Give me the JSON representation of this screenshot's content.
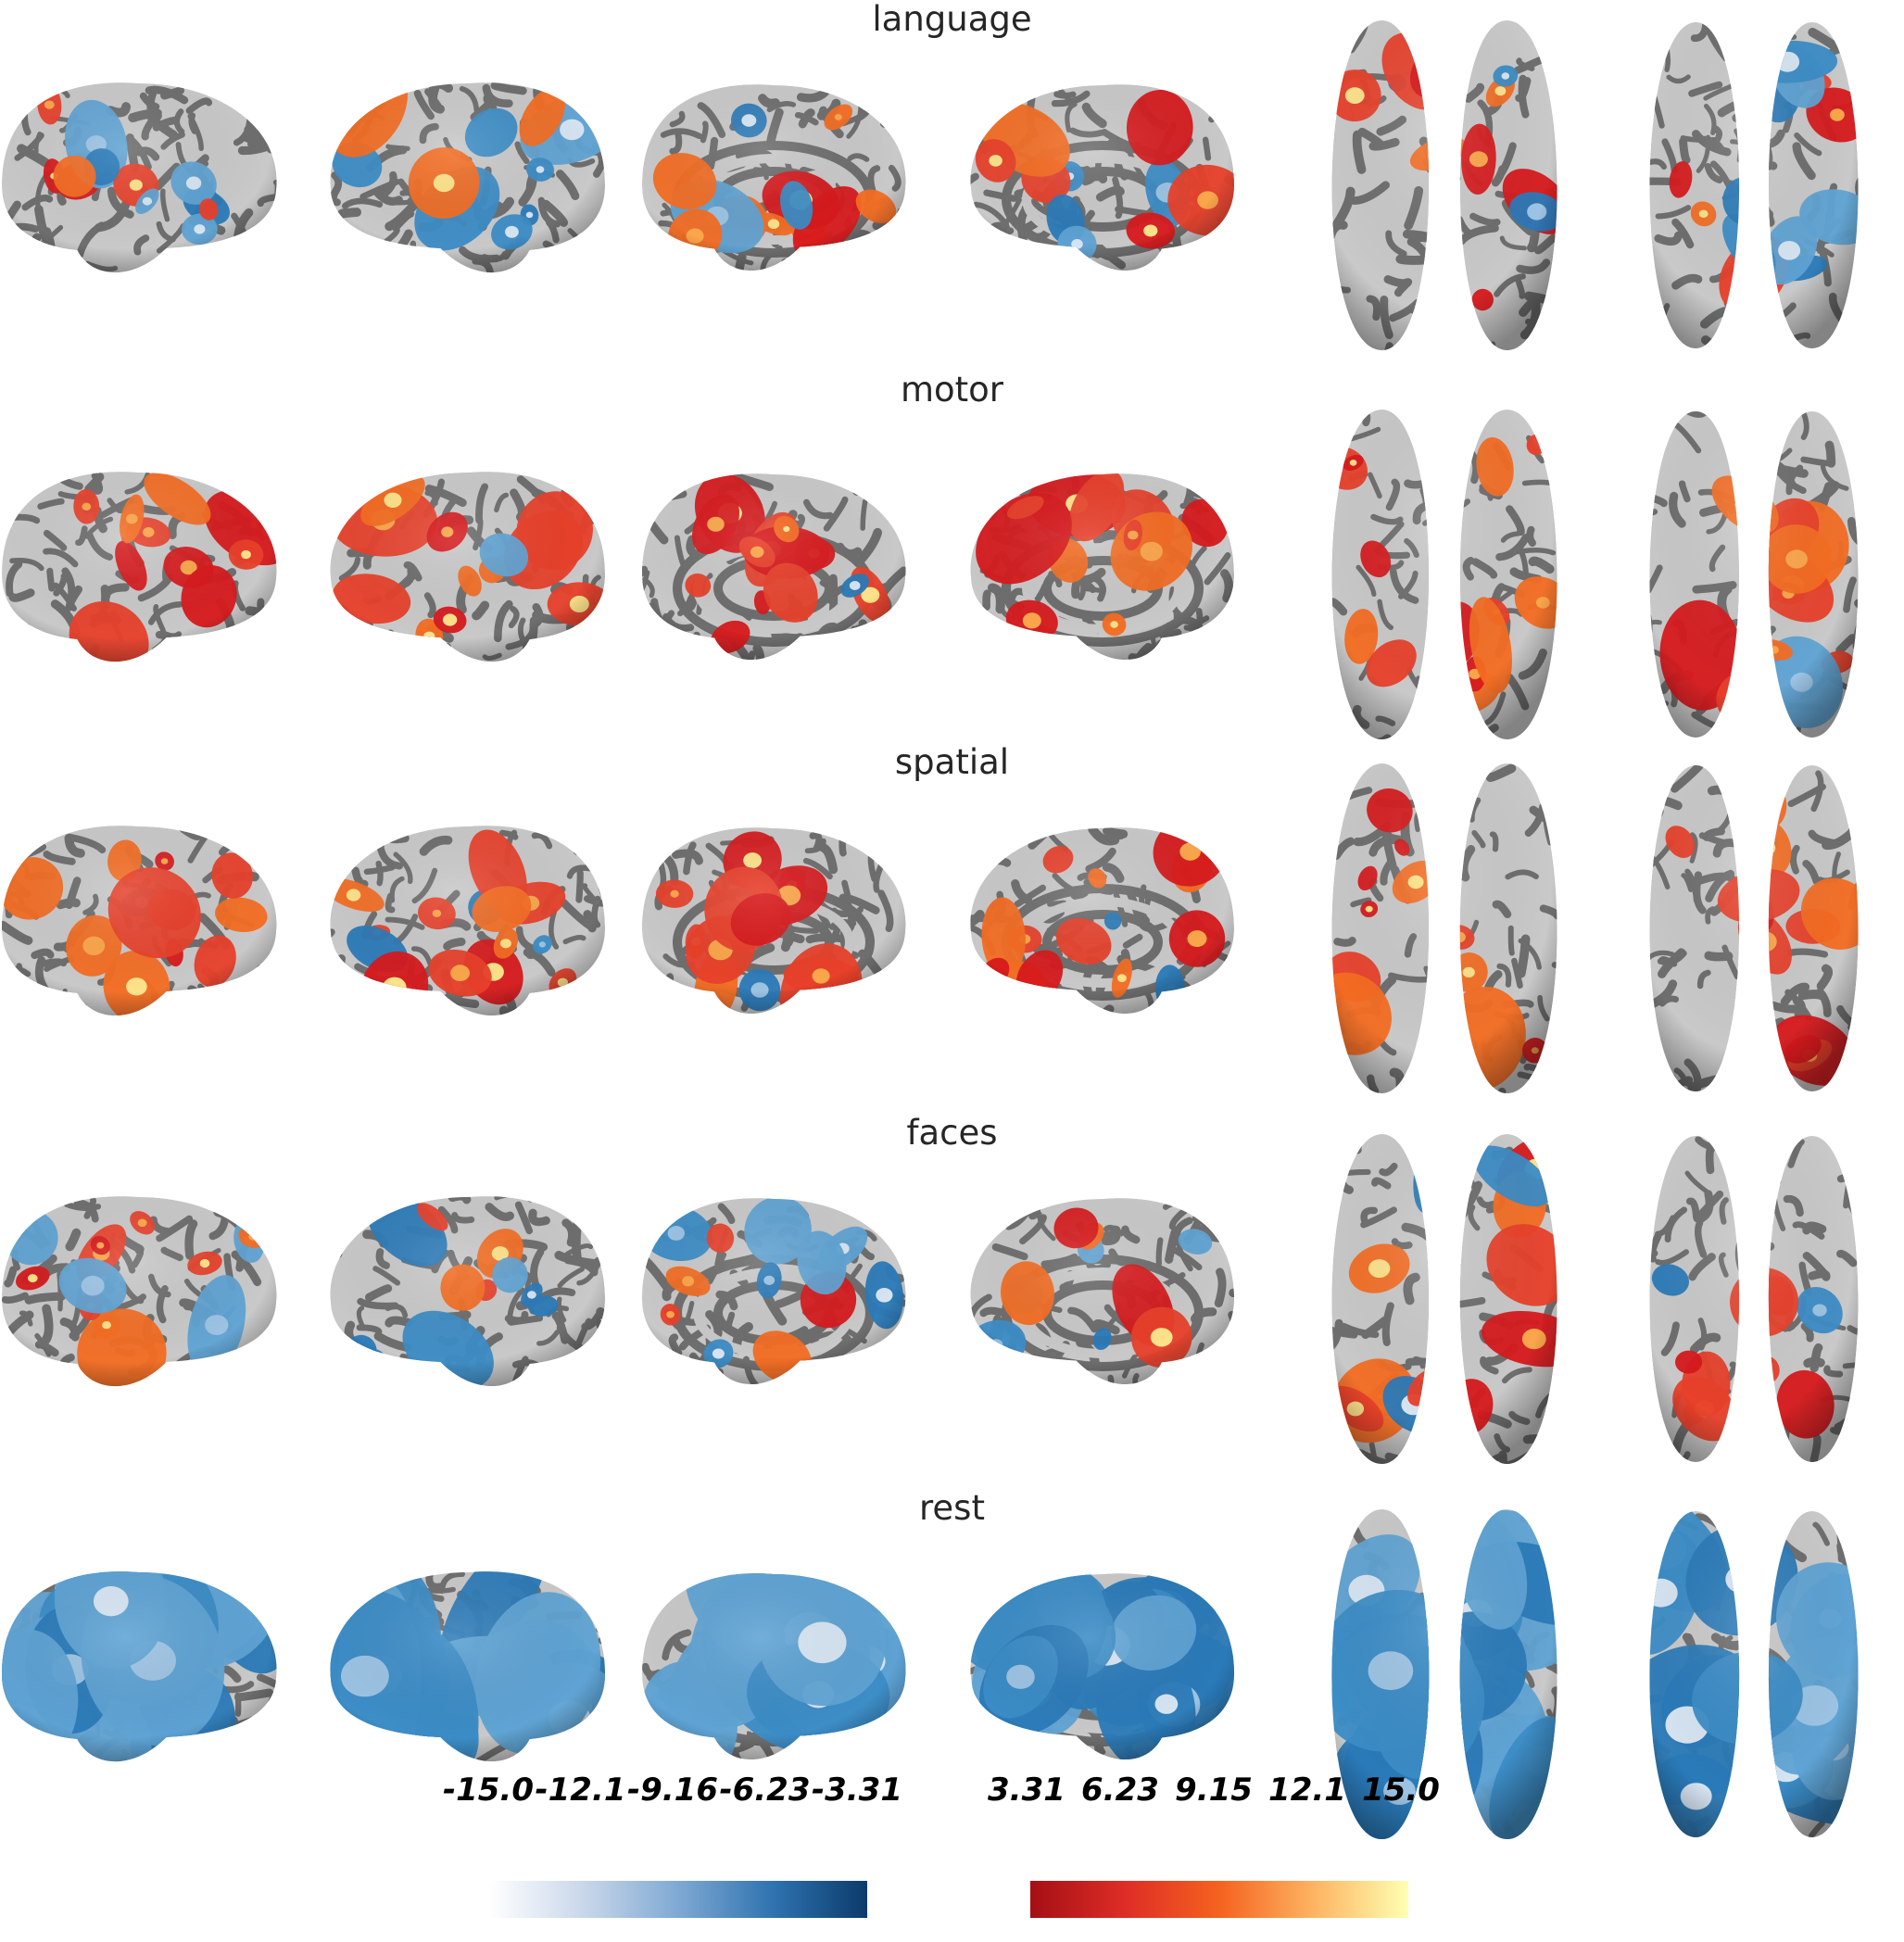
{
  "figure": {
    "rows": [
      {
        "title": "language",
        "pattern": "language"
      },
      {
        "title": "motor",
        "pattern": "motor"
      },
      {
        "title": "spatial",
        "pattern": "spatial"
      },
      {
        "title": "faces",
        "pattern": "faces"
      },
      {
        "title": "rest",
        "pattern": "rest"
      }
    ],
    "views": [
      "lateral-left",
      "lateral-right",
      "medial-left",
      "medial-right",
      "dorsal",
      "ventral"
    ]
  },
  "colorbar": {
    "negative_ticks": [
      "-15.0",
      "-12.1",
      "-9.16",
      "-6.23",
      "-3.31"
    ],
    "positive_ticks": [
      "3.31",
      "6.23",
      "9.15",
      "12.1",
      "15.0"
    ],
    "negative_range": [
      -15.0,
      -3.31
    ],
    "positive_range": [
      3.31,
      15.0
    ],
    "negative_colors": [
      "#ffffff",
      "#c9d7ea",
      "#7fa9d3",
      "#2f73b0",
      "#0b3b6b"
    ],
    "positive_colors": [
      "#a50f15",
      "#de2d26",
      "#f5621f",
      "#fdb462",
      "#ffffb2"
    ]
  },
  "colors": {
    "sulcus": "#6e6e6e",
    "gyrus": "#c9c9c9",
    "text": "#262626"
  }
}
